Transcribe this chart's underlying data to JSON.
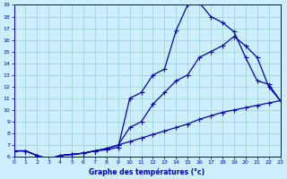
{
  "xlabel": "Graphe des températures (°c)",
  "bg_color": "#cceeff",
  "line_color": "#0000bb",
  "grid_color": "#99cccc",
  "ylim": [
    6,
    19
  ],
  "xlim": [
    0,
    23
  ],
  "yticks": [
    6,
    7,
    8,
    9,
    10,
    11,
    12,
    13,
    14,
    15,
    16,
    17,
    18,
    19
  ],
  "xticks": [
    0,
    1,
    2,
    3,
    4,
    5,
    6,
    7,
    8,
    9,
    10,
    11,
    12,
    13,
    14,
    15,
    16,
    17,
    18,
    19,
    20,
    21,
    22,
    23
  ],
  "series1_x": [
    0,
    1,
    2,
    3,
    4,
    5,
    6,
    7,
    8,
    9,
    10,
    11,
    12,
    13,
    14,
    15,
    16,
    17,
    18,
    19,
    20,
    21,
    22,
    23
  ],
  "series1_y": [
    6.5,
    6.5,
    6.1,
    5.8,
    6.1,
    6.2,
    6.3,
    6.5,
    6.6,
    6.8,
    11.0,
    11.5,
    13.0,
    13.5,
    16.8,
    19.0,
    19.2,
    18.0,
    17.5,
    16.7,
    14.5,
    12.5,
    12.2,
    10.8
  ],
  "series2_x": [
    0,
    1,
    2,
    3,
    4,
    5,
    6,
    7,
    8,
    9,
    10,
    11,
    12,
    13,
    14,
    15,
    16,
    17,
    18,
    19,
    20,
    21,
    22,
    23
  ],
  "series2_y": [
    6.5,
    6.5,
    6.1,
    5.8,
    6.1,
    6.2,
    6.3,
    6.5,
    6.7,
    7.0,
    8.5,
    9.0,
    10.5,
    11.5,
    12.5,
    13.0,
    14.5,
    15.0,
    15.5,
    16.3,
    15.5,
    14.5,
    12.0,
    10.8
  ],
  "series3_x": [
    0,
    1,
    2,
    3,
    4,
    5,
    6,
    7,
    8,
    9,
    10,
    11,
    12,
    13,
    14,
    15,
    16,
    17,
    18,
    19,
    20,
    21,
    22,
    23
  ],
  "series3_y": [
    6.5,
    6.5,
    6.1,
    5.8,
    6.1,
    6.2,
    6.3,
    6.5,
    6.7,
    7.0,
    7.3,
    7.6,
    7.9,
    8.2,
    8.5,
    8.8,
    9.2,
    9.5,
    9.8,
    10.0,
    10.2,
    10.4,
    10.6,
    10.8
  ]
}
